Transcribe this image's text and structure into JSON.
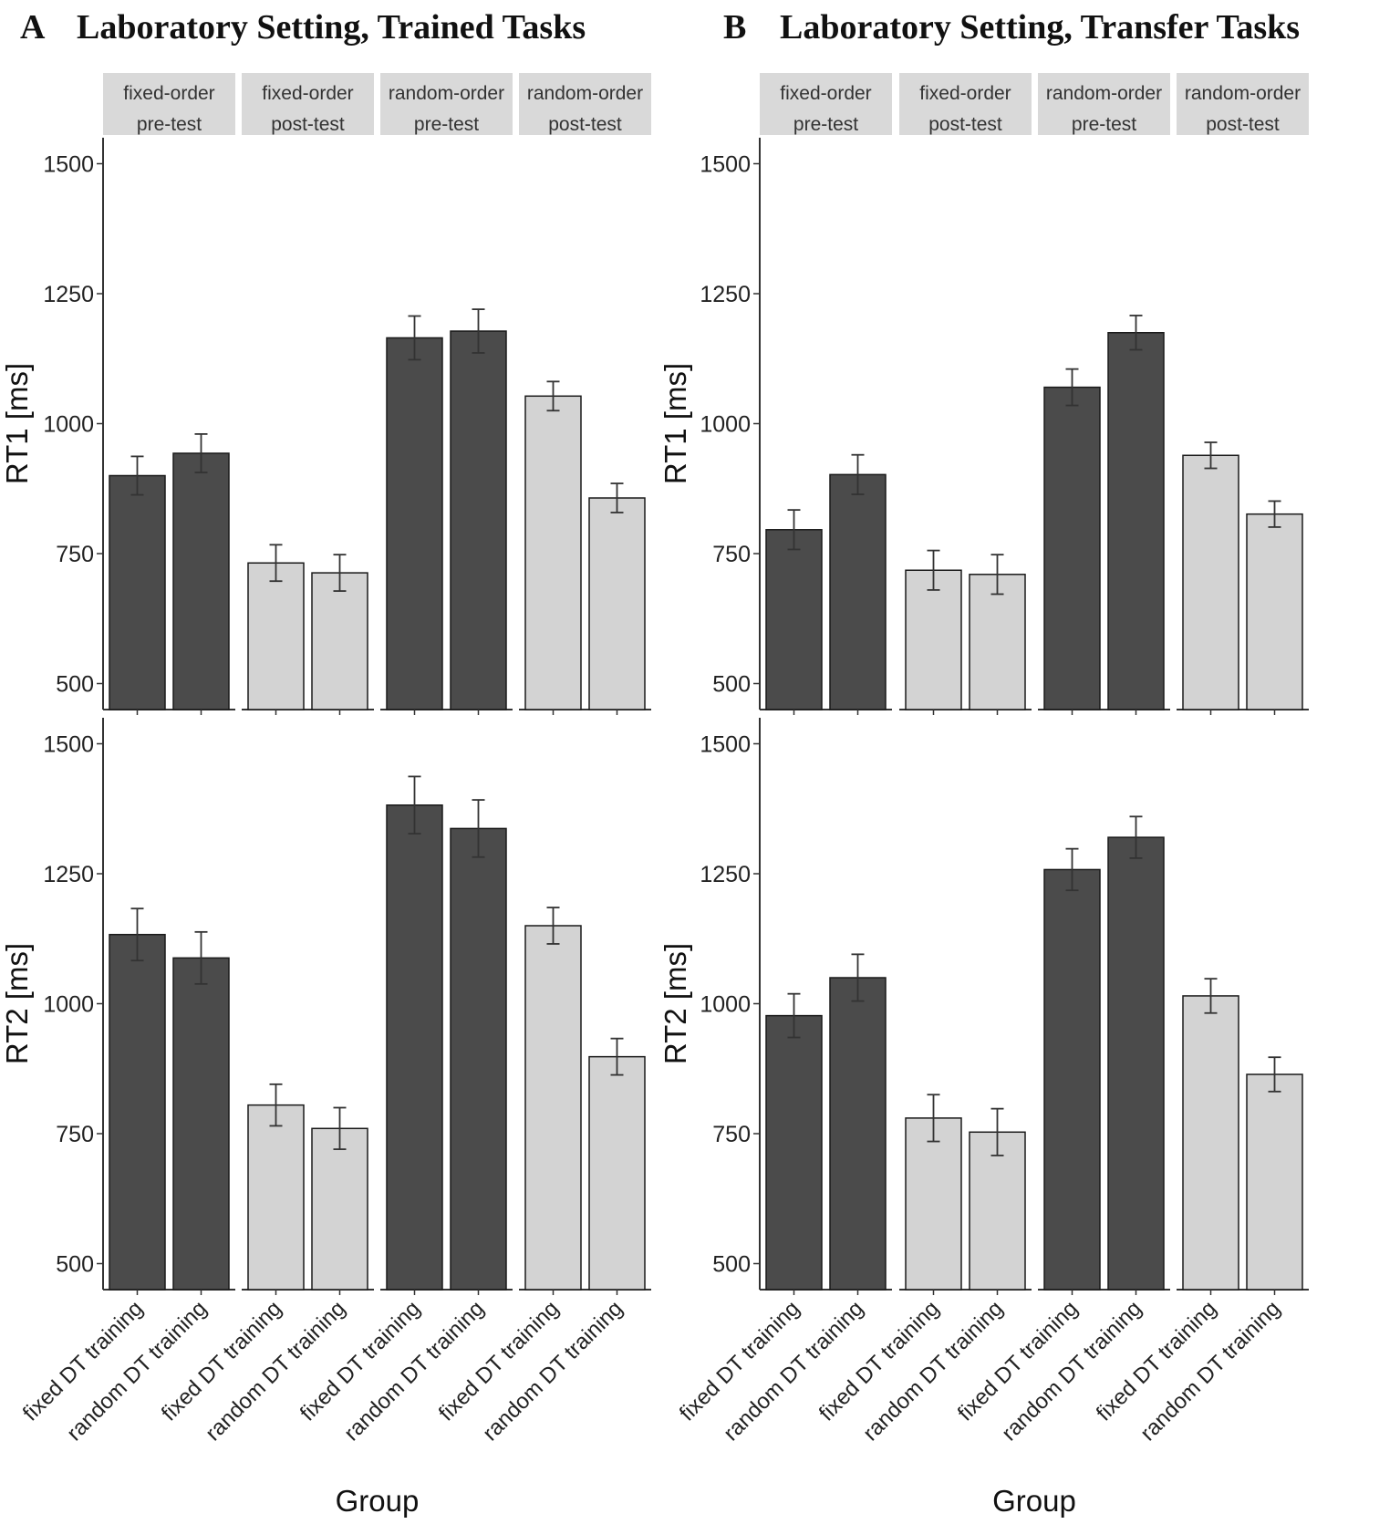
{
  "figure": {
    "colors": {
      "pre_test_fill": "#4b4b4b",
      "post_test_fill": "#d3d3d3",
      "bar_stroke": "#1a1a1a",
      "strip_fill": "#d9d9d9",
      "axis": "#333333",
      "error_bar": "#333333"
    }
  },
  "chart_data": [
    {
      "type": "bar",
      "panel_letter": "A",
      "title": "Laboratory Setting, Trained Tasks",
      "facets": [
        "fixed-order\npre-test",
        "fixed-order\npost-test",
        "random-order\npre-test",
        "random-order\npost-test"
      ],
      "facet_fill": [
        "pre",
        "post",
        "pre",
        "post"
      ],
      "categories": [
        "fixed DT training",
        "random DT training"
      ],
      "xlabel": "Group",
      "ylim": [
        450,
        1550
      ],
      "yticks": [
        500,
        750,
        1000,
        1250,
        1500
      ],
      "rows": [
        {
          "ylabel": "RT1 [ms]",
          "values": [
            [
              900,
              943
            ],
            [
              732,
              713
            ],
            [
              1165,
              1178
            ],
            [
              1053,
              857
            ]
          ],
          "errors": [
            [
              37,
              37
            ],
            [
              35,
              35
            ],
            [
              42,
              42
            ],
            [
              28,
              28
            ]
          ]
        },
        {
          "ylabel": "RT2 [ms]",
          "values": [
            [
              1133,
              1088
            ],
            [
              805,
              760
            ],
            [
              1382,
              1337
            ],
            [
              1150,
              898
            ]
          ],
          "errors": [
            [
              50,
              50
            ],
            [
              40,
              40
            ],
            [
              55,
              55
            ],
            [
              35,
              35
            ]
          ]
        }
      ]
    },
    {
      "type": "bar",
      "panel_letter": "B",
      "title": "Laboratory Setting, Transfer Tasks",
      "facets": [
        "fixed-order\npre-test",
        "fixed-order\npost-test",
        "random-order\npre-test",
        "random-order\npost-test"
      ],
      "facet_fill": [
        "pre",
        "post",
        "pre",
        "post"
      ],
      "categories": [
        "fixed DT training",
        "random DT training"
      ],
      "xlabel": "Group",
      "ylim": [
        450,
        1550
      ],
      "yticks": [
        500,
        750,
        1000,
        1250,
        1500
      ],
      "rows": [
        {
          "ylabel": "RT1 [ms]",
          "values": [
            [
              796,
              902
            ],
            [
              718,
              710
            ],
            [
              1070,
              1175
            ],
            [
              939,
              826
            ]
          ],
          "errors": [
            [
              38,
              38
            ],
            [
              38,
              38
            ],
            [
              35,
              33
            ],
            [
              25,
              25
            ]
          ]
        },
        {
          "ylabel": "RT2 [ms]",
          "values": [
            [
              977,
              1050
            ],
            [
              780,
              753
            ],
            [
              1258,
              1320
            ],
            [
              1015,
              864
            ]
          ],
          "errors": [
            [
              42,
              45
            ],
            [
              45,
              45
            ],
            [
              40,
              40
            ],
            [
              33,
              33
            ]
          ]
        }
      ]
    }
  ]
}
